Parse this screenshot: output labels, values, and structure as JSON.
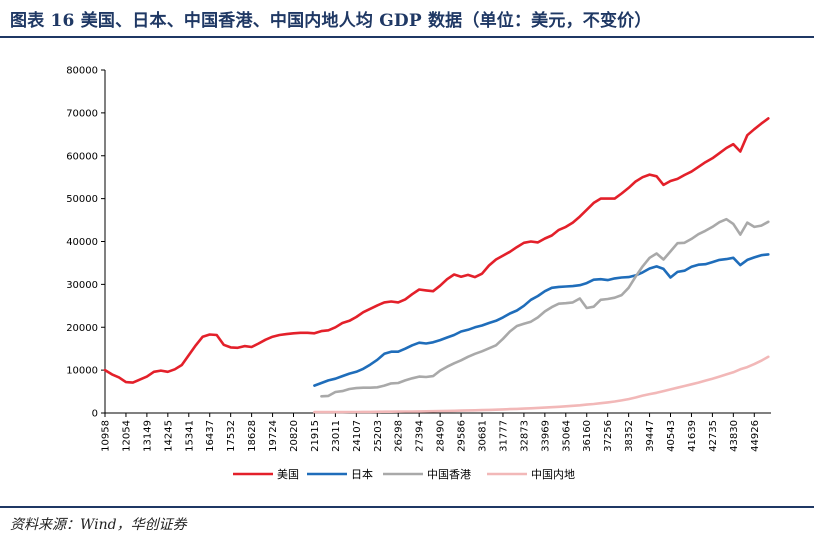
{
  "header": {
    "title": "图表 16   美国、日本、中国香港、中国内地人均 GDP 数据（单位：美元，不变价）"
  },
  "footer": {
    "source": "资料来源：Wind，华创证券"
  },
  "chart_data": {
    "type": "line",
    "title": "",
    "xlabel": "",
    "ylabel": "",
    "ylim": [
      0,
      80000
    ],
    "xlim": [
      10958,
      45800
    ],
    "y_ticks": [
      0,
      10000,
      20000,
      30000,
      40000,
      50000,
      60000,
      70000,
      80000
    ],
    "x_ticks": [
      10958,
      12054,
      13149,
      14245,
      15341,
      16437,
      17532,
      18628,
      19724,
      20820,
      21915,
      23011,
      24107,
      25203,
      26298,
      27394,
      28490,
      29586,
      30681,
      31777,
      32873,
      33969,
      35064,
      36160,
      37256,
      38352,
      39447,
      40543,
      41639,
      42735,
      43830,
      44926
    ],
    "grid": false,
    "legend_position": "bottom",
    "series": [
      {
        "name": "美国",
        "color": "#e3202a",
        "x": [
          10958,
          11323,
          11688,
          12054,
          12419,
          12784,
          13149,
          13515,
          13880,
          14245,
          14610,
          14976,
          15341,
          15706,
          16071,
          16437,
          16802,
          17167,
          17532,
          17898,
          18263,
          18628,
          18993,
          19359,
          19724,
          20089,
          20454,
          20820,
          21185,
          21550,
          21915,
          22281,
          22646,
          23011,
          23376,
          23742,
          24107,
          24472,
          24837,
          25203,
          25568,
          25933,
          26298,
          26664,
          27029,
          27394,
          27759,
          28125,
          28490,
          28855,
          29220,
          29586,
          29951,
          30316,
          30681,
          31047,
          31412,
          31777,
          32142,
          32508,
          32873,
          33238,
          33603,
          33969,
          34334,
          34699,
          35064,
          35430,
          35795,
          36160,
          36525,
          36891,
          37256,
          37621,
          37986,
          38352,
          38717,
          39082,
          39447,
          39813,
          40178,
          40543,
          40908,
          41274,
          41639,
          42004,
          42369,
          42735,
          43100,
          43465,
          43830,
          44196,
          44561,
          44926,
          45291,
          45657
        ],
        "values": [
          10000,
          9000,
          8300,
          7200,
          7100,
          7800,
          8500,
          9600,
          9900,
          9600,
          10200,
          11200,
          13500,
          15800,
          17800,
          18300,
          18200,
          15900,
          15300,
          15200,
          15600,
          15400,
          16200,
          17100,
          17800,
          18200,
          18400,
          18600,
          18700,
          18700,
          18600,
          19100,
          19300,
          20000,
          21000,
          21500,
          22400,
          23500,
          24300,
          25100,
          25800,
          26000,
          25800,
          26500,
          27700,
          28800,
          28600,
          28400,
          29700,
          31200,
          32300,
          31800,
          32200,
          31700,
          32500,
          34400,
          35800,
          36700,
          37600,
          38700,
          39700,
          40000,
          39800,
          40700,
          41400,
          42700,
          43400,
          44400,
          45800,
          47400,
          49000,
          50000,
          50000,
          50000,
          51200,
          52500,
          54000,
          55000,
          55600,
          55200,
          53200,
          54100,
          54600,
          55500,
          56300,
          57400,
          58500,
          59400,
          60600,
          61800,
          62700,
          61000,
          64800,
          66200,
          67500,
          68700
        ]
      },
      {
        "name": "日本",
        "color": "#1f6dba",
        "x": [
          21915,
          22281,
          22646,
          23011,
          23376,
          23742,
          24107,
          24472,
          24837,
          25203,
          25568,
          25933,
          26298,
          26664,
          27029,
          27394,
          27759,
          28125,
          28490,
          28855,
          29220,
          29586,
          29951,
          30316,
          30681,
          31047,
          31412,
          31777,
          32142,
          32508,
          32873,
          33238,
          33603,
          33969,
          34334,
          34699,
          35064,
          35430,
          35795,
          36160,
          36525,
          36891,
          37256,
          37621,
          37986,
          38352,
          38717,
          39082,
          39447,
          39813,
          40178,
          40543,
          40908,
          41274,
          41639,
          42004,
          42369,
          42735,
          43100,
          43465,
          43830,
          44196,
          44561,
          44926,
          45291,
          45657
        ],
        "values": [
          6400,
          7000,
          7600,
          8000,
          8600,
          9200,
          9600,
          10300,
          11300,
          12400,
          13800,
          14300,
          14300,
          15000,
          15800,
          16400,
          16200,
          16500,
          17000,
          17600,
          18200,
          19000,
          19400,
          20000,
          20400,
          21000,
          21500,
          22300,
          23200,
          23900,
          25000,
          26400,
          27300,
          28400,
          29200,
          29400,
          29500,
          29600,
          29800,
          30300,
          31100,
          31200,
          31000,
          31400,
          31600,
          31700,
          32100,
          32800,
          33700,
          34200,
          33600,
          31600,
          32900,
          33200,
          34100,
          34600,
          34700,
          35200,
          35700,
          35900,
          36200,
          34500,
          35700,
          36300,
          36800,
          37000
        ]
      },
      {
        "name": "中国香港",
        "color": "#a9a9a9",
        "x": [
          22281,
          22646,
          23011,
          23376,
          23742,
          24107,
          24472,
          24837,
          25203,
          25568,
          25933,
          26298,
          26664,
          27029,
          27394,
          27759,
          28125,
          28490,
          28855,
          29220,
          29586,
          29951,
          30316,
          30681,
          31047,
          31412,
          31777,
          32142,
          32508,
          32873,
          33238,
          33603,
          33969,
          34334,
          34699,
          35064,
          35430,
          35795,
          36160,
          36525,
          36891,
          37256,
          37621,
          37986,
          38352,
          38717,
          39082,
          39447,
          39813,
          40178,
          40543,
          40908,
          41274,
          41639,
          42004,
          42369,
          42735,
          43100,
          43465,
          43830,
          44196,
          44561,
          44926,
          45291,
          45657
        ],
        "values": [
          3900,
          4000,
          4900,
          5100,
          5600,
          5800,
          5900,
          5900,
          6000,
          6400,
          6900,
          7000,
          7600,
          8100,
          8500,
          8400,
          8600,
          9900,
          10800,
          11600,
          12300,
          13100,
          13800,
          14400,
          15100,
          15800,
          17300,
          19000,
          20300,
          20800,
          21300,
          22300,
          23700,
          24700,
          25500,
          25600,
          25800,
          26700,
          24500,
          24800,
          26400,
          26600,
          26900,
          27500,
          29200,
          31800,
          34200,
          36200,
          37200,
          35800,
          37700,
          39600,
          39700,
          40600,
          41700,
          42500,
          43400,
          44500,
          45200,
          44100,
          41600,
          44400,
          43400,
          43700,
          44600
        ]
      },
      {
        "name": "中国内地",
        "color": "#f2b8b8",
        "x": [
          21915,
          22281,
          22646,
          23011,
          23376,
          23742,
          24107,
          24472,
          24837,
          25203,
          25568,
          25933,
          26298,
          26664,
          27029,
          27394,
          27759,
          28125,
          28490,
          28855,
          29220,
          29586,
          29951,
          30316,
          30681,
          31047,
          31412,
          31777,
          32142,
          32508,
          32873,
          33238,
          33603,
          33969,
          34334,
          34699,
          35064,
          35430,
          35795,
          36160,
          36525,
          36891,
          37256,
          37621,
          37986,
          38352,
          38717,
          39082,
          39447,
          39813,
          40178,
          40543,
          40908,
          41274,
          41639,
          42004,
          42369,
          42735,
          43100,
          43465,
          43830,
          44196,
          44561,
          44926,
          45291,
          45657
        ],
        "values": [
          200,
          200,
          200,
          210,
          220,
          230,
          240,
          250,
          260,
          280,
          300,
          310,
          320,
          340,
          360,
          380,
          400,
          430,
          460,
          490,
          520,
          560,
          600,
          640,
          680,
          730,
          780,
          840,
          900,
          960,
          1020,
          1100,
          1180,
          1260,
          1350,
          1450,
          1560,
          1680,
          1800,
          1950,
          2100,
          2280,
          2470,
          2690,
          2950,
          3250,
          3620,
          4050,
          4400,
          4720,
          5100,
          5500,
          5900,
          6300,
          6700,
          7100,
          7550,
          8000,
          8500,
          9000,
          9500,
          10200,
          10700,
          11400,
          12200,
          13100
        ]
      }
    ]
  }
}
